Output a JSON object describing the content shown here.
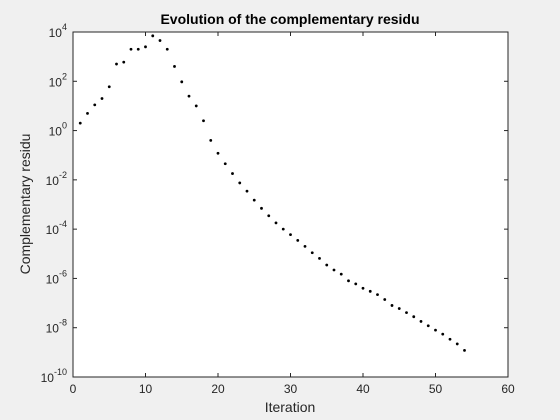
{
  "chart_data": {
    "type": "scatter",
    "title": "Evolution of the complementary residu",
    "xlabel": "Iteration",
    "ylabel": "Complementary residu",
    "xlim": [
      0,
      60
    ],
    "ylim_exponent": [
      -10,
      4
    ],
    "yscale": "log",
    "grid": false,
    "xticks": [
      "0",
      "10",
      "20",
      "30",
      "40",
      "50",
      "60"
    ],
    "yticks": [
      {
        "base": "10",
        "exp": "-10",
        "value": -10
      },
      {
        "base": "10",
        "exp": "-8",
        "value": -8
      },
      {
        "base": "10",
        "exp": "-6",
        "value": -6
      },
      {
        "base": "10",
        "exp": "-4",
        "value": -4
      },
      {
        "base": "10",
        "exp": "-2",
        "value": -2
      },
      {
        "base": "10",
        "exp": "0",
        "value": 0
      },
      {
        "base": "10",
        "exp": "2",
        "value": 2
      },
      {
        "base": "10",
        "exp": "4",
        "value": 4
      }
    ],
    "marker_color": "#000000",
    "x": [
      1,
      2,
      3,
      4,
      5,
      6,
      7,
      8,
      9,
      10,
      11,
      12,
      13,
      14,
      15,
      16,
      17,
      18,
      19,
      20,
      21,
      22,
      23,
      24,
      25,
      26,
      27,
      28,
      29,
      30,
      31,
      32,
      33,
      34,
      35,
      36,
      37,
      38,
      39,
      40,
      41,
      42,
      43,
      44,
      45,
      46,
      47,
      48,
      49,
      50,
      51,
      52,
      53,
      54
    ],
    "y": [
      2,
      5,
      11,
      20,
      60,
      500,
      600,
      2000,
      2000,
      2500,
      7000,
      4500,
      2000,
      400,
      95,
      25,
      10,
      2.5,
      0.4,
      0.12,
      0.045,
      0.018,
      0.0075,
      0.0035,
      0.0015,
      0.0007,
      0.00035,
      0.00018,
      0.0001,
      6e-05,
      3.5e-05,
      2e-05,
      1.1e-05,
      6.5e-06,
      3.5e-06,
      2.2e-06,
      1.5e-06,
      8e-07,
      6e-07,
      4e-07,
      3e-07,
      2.2e-07,
      1.4e-07,
      8e-08,
      6e-08,
      4.1e-08,
      2.8e-08,
      1.8e-08,
      1.2e-08,
      8e-09,
      5.5e-09,
      3.4e-09,
      2.2e-09,
      1.2e-09
    ]
  }
}
